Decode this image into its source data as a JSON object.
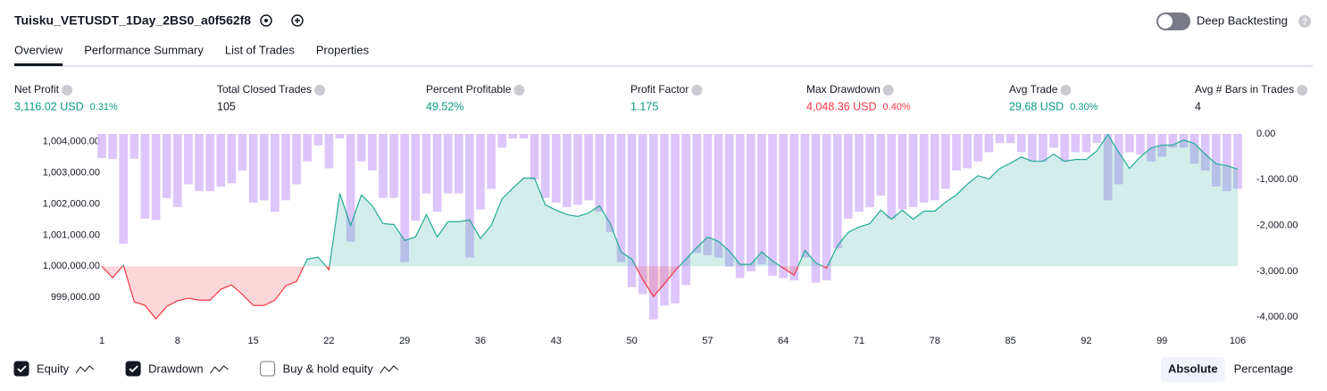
{
  "header": {
    "title": "Tuisku_VETUSDT_1Day_2BS0_a0f562f8",
    "toggle_label": "Deep Backtesting",
    "toggle_on": false
  },
  "tabs": [
    "Overview",
    "Performance Summary",
    "List of Trades",
    "Properties"
  ],
  "metrics": [
    {
      "label": "Net Profit",
      "value": "3,116.02 USD",
      "percent": "0.31%",
      "tone": "positive"
    },
    {
      "label": "Total Closed Trades",
      "value": "105",
      "tone": "neutral"
    },
    {
      "label": "Percent Profitable",
      "value": "49.52%",
      "tone": "positive"
    },
    {
      "label": "Profit Factor",
      "value": "1.175",
      "tone": "positive"
    },
    {
      "label": "Max Drawdown",
      "value": "4,048.36 USD",
      "percent": "0.40%",
      "tone": "negative"
    },
    {
      "label": "Avg Trade",
      "value": "29.68 USD",
      "percent": "0.30%",
      "tone": "positive"
    },
    {
      "label": "Avg # Bars in Trades",
      "value": "4",
      "tone": "neutral"
    }
  ],
  "chart_data": {
    "type": "equity",
    "x": [
      1,
      2,
      3,
      4,
      5,
      6,
      7,
      8,
      9,
      10,
      11,
      12,
      13,
      14,
      15,
      16,
      17,
      18,
      19,
      20,
      21,
      22,
      23,
      24,
      25,
      26,
      27,
      28,
      29,
      30,
      31,
      32,
      33,
      34,
      35,
      36,
      37,
      38,
      39,
      40,
      41,
      42,
      43,
      44,
      45,
      46,
      47,
      48,
      49,
      50,
      51,
      52,
      53,
      54,
      55,
      56,
      57,
      58,
      59,
      60,
      61,
      62,
      63,
      64,
      65,
      66,
      67,
      68,
      69,
      70,
      71,
      72,
      73,
      74,
      75,
      76,
      77,
      78,
      79,
      80,
      81,
      82,
      83,
      84,
      85,
      86,
      87,
      88,
      89,
      90,
      91,
      92,
      93,
      94,
      95,
      96,
      97,
      98,
      99,
      100,
      101,
      102,
      103,
      104,
      105,
      106
    ],
    "xlim": [
      1,
      106
    ],
    "xticks": [
      1,
      8,
      15,
      22,
      29,
      36,
      43,
      50,
      57,
      64,
      71,
      78,
      85,
      92,
      99,
      106
    ],
    "ylim": [
      998000,
      1004250
    ],
    "yticks": [
      {
        "value": 999000,
        "label": "999,000.00"
      },
      {
        "value": 1000000,
        "label": "1,000,000.00"
      },
      {
        "value": 1001000,
        "label": "1,001,000.00"
      },
      {
        "value": 1002000,
        "label": "1,002,000.00"
      },
      {
        "value": 1003000,
        "label": "1,003,000.00"
      },
      {
        "value": 1004000,
        "label": "1,004,000.00"
      }
    ],
    "y2lim": [
      -4250,
      0
    ],
    "y2ticks": [
      {
        "value": 0,
        "label": "0.00"
      },
      {
        "value": -1000,
        "label": "-1,000.00"
      },
      {
        "value": -2000,
        "label": "-2,000.00"
      },
      {
        "value": -3000,
        "label": "-3,000.00"
      },
      {
        "value": -4000,
        "label": "-4,000.00"
      }
    ],
    "series": [
      {
        "name": "Equity",
        "kind": "area",
        "color": "#22ab94",
        "negative_color": "#f23645",
        "checked": true,
        "values": [
          1000000,
          999630,
          1000030,
          998860,
          998740,
          998310,
          998710,
          998890,
          998970,
          998910,
          998910,
          999260,
          999400,
          999090,
          998740,
          998740,
          998910,
          999370,
          999510,
          1000230,
          1000290,
          999890,
          1002340,
          1001310,
          1002290,
          1001940,
          1001370,
          1001340,
          1000830,
          1000940,
          1001660,
          1000940,
          1001430,
          1001430,
          1001490,
          1000890,
          1001310,
          1002170,
          1002510,
          1002830,
          1002830,
          1001970,
          1001800,
          1001660,
          1001600,
          1001710,
          1001940,
          1001370,
          1000460,
          1000230,
          999570,
          999030,
          999430,
          999860,
          1000230,
          1000600,
          1000940,
          1000800,
          1000490,
          1000060,
          1000060,
          1000460,
          1000170,
          999940,
          999710,
          1000510,
          1000110,
          999940,
          1000660,
          1001090,
          1001260,
          1001370,
          1001800,
          1001510,
          1001800,
          1001510,
          1001770,
          1001770,
          1002060,
          1002290,
          1002630,
          1002910,
          1002800,
          1003140,
          1003310,
          1003510,
          1003370,
          1003370,
          1003600,
          1003370,
          1003430,
          1003430,
          1003710,
          1004230,
          1003660,
          1003140,
          1003510,
          1003800,
          1003890,
          1003890,
          1004060,
          1003940,
          1003600,
          1003290,
          1003230,
          1003116.02
        ]
      },
      {
        "name": "Drawdown",
        "kind": "bar",
        "axis": "y2",
        "color": "#d6bcfa",
        "checked": true,
        "values": [
          -530,
          -550,
          -2400,
          -540,
          -1850,
          -1880,
          -1400,
          -1600,
          -1100,
          -1250,
          -1250,
          -1150,
          -1080,
          -800,
          -1500,
          -1450,
          -1700,
          -1450,
          -1100,
          -600,
          -250,
          -750,
          -100,
          -2350,
          -600,
          -800,
          -1400,
          -1400,
          -2800,
          -1900,
          -1300,
          -1700,
          -1300,
          -1300,
          -2700,
          -1650,
          -1200,
          -300,
          -100,
          -100,
          -1000,
          -1400,
          -1500,
          -1600,
          -1550,
          -1450,
          -1700,
          -2150,
          -2800,
          -3350,
          -3500,
          -4048.36,
          -3750,
          -3700,
          -3300,
          -2600,
          -2650,
          -2700,
          -2900,
          -3150,
          -3000,
          -2850,
          -3100,
          -3150,
          -3200,
          -2700,
          -3250,
          -3200,
          -2500,
          -1850,
          -1700,
          -1600,
          -1350,
          -1850,
          -1650,
          -1600,
          -1500,
          -1450,
          -1200,
          -800,
          -750,
          -600,
          -400,
          -200,
          -200,
          -400,
          -600,
          -600,
          -300,
          -600,
          -400,
          -400,
          -200,
          -1450,
          -1100,
          -400,
          -450,
          -600,
          -500,
          -300,
          -300,
          -650,
          -800,
          -1150,
          -1250,
          -1200
        ]
      }
    ],
    "extra_legend": [
      {
        "label": "Buy & hold equity",
        "checked": false
      }
    ]
  },
  "view_buttons": [
    {
      "label": "Absolute",
      "active": true
    },
    {
      "label": "Percentage",
      "active": false
    }
  ]
}
